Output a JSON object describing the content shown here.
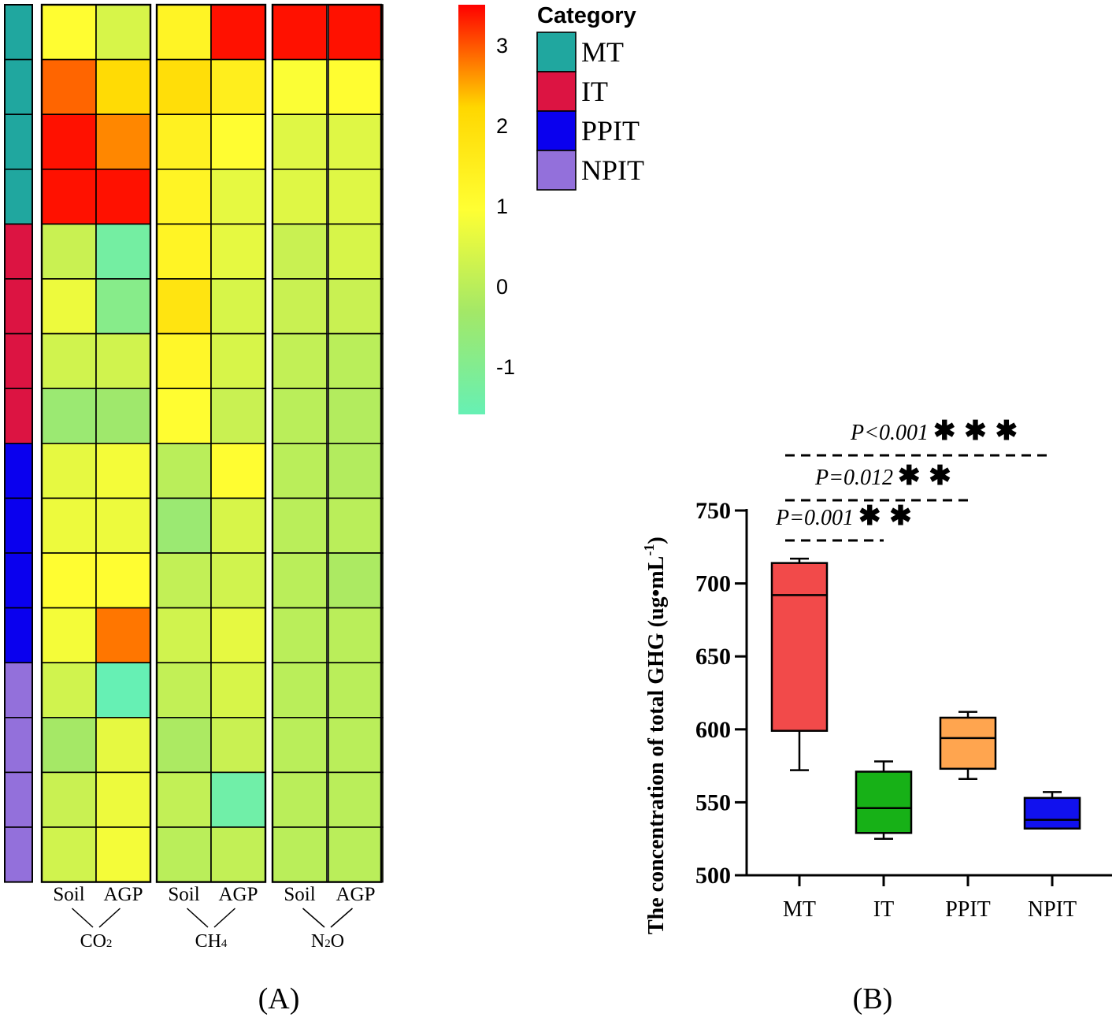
{
  "panel_a": {
    "label": "(A)",
    "legend_title": "Category",
    "categories": [
      {
        "name": "MT",
        "color": "#20A79F"
      },
      {
        "name": "IT",
        "color": "#DC1442"
      },
      {
        "name": "PPIT",
        "color": "#0A00EE"
      },
      {
        "name": "NPIT",
        "color": "#9370DB"
      }
    ],
    "colorbar": {
      "ticks": [
        "3",
        "2",
        "1",
        "0",
        "-1"
      ],
      "tick_values": [
        3,
        2,
        1,
        0,
        -1
      ],
      "min": -1.6,
      "max": 3.5,
      "colors": [
        "#FF0000",
        "#FFD700",
        "#FFFF33",
        "#A3E867",
        "#66F0B4"
      ]
    },
    "gases": [
      {
        "name": "CO",
        "subscript": "2",
        "columns": [
          "Soil",
          "AGP"
        ]
      },
      {
        "name": "CH",
        "subscript": "4",
        "columns": [
          "Soil",
          "AGP"
        ]
      },
      {
        "name": "N",
        "subscript": "2",
        "suffix": "O",
        "columns": [
          "Soil",
          "AGP"
        ]
      }
    ]
  },
  "chart_data": [
    {
      "type": "heatmap",
      "title": "",
      "columns": [
        "CO2 Soil",
        "CO2 AGP",
        "CH4 Soil",
        "CH4 AGP",
        "N2O Soil",
        "N2O AGP"
      ],
      "row_groups": [
        "MT",
        "MT",
        "MT",
        "MT",
        "IT",
        "IT",
        "IT",
        "IT",
        "PPIT",
        "PPIT",
        "PPIT",
        "PPIT",
        "NPIT",
        "NPIT",
        "NPIT",
        "NPIT"
      ],
      "scale": {
        "min": -1.6,
        "max": 3.5
      },
      "values": [
        [
          1.0,
          0.4,
          1.3,
          3.4,
          3.4,
          3.4
        ],
        [
          2.9,
          2.1,
          2.0,
          1.5,
          0.9,
          1.0
        ],
        [
          3.4,
          2.7,
          1.4,
          1.0,
          0.5,
          0.5
        ],
        [
          3.4,
          3.4,
          1.3,
          0.6,
          0.5,
          0.5
        ],
        [
          0.2,
          -1.3,
          1.3,
          0.6,
          0.2,
          0.4
        ],
        [
          0.7,
          -0.9,
          1.8,
          0.4,
          0.2,
          0.2
        ],
        [
          0.3,
          0.3,
          1.2,
          0.4,
          0.1,
          0.0
        ],
        [
          -0.5,
          -0.4,
          1.0,
          0.2,
          0.0,
          -0.1
        ],
        [
          0.6,
          0.8,
          0.0,
          1.0,
          0.0,
          -0.1
        ],
        [
          0.7,
          0.7,
          -0.5,
          0.4,
          0.0,
          0.0
        ],
        [
          1.0,
          1.0,
          0.1,
          0.3,
          0.0,
          -0.2
        ],
        [
          0.8,
          2.8,
          0.3,
          0.6,
          0.0,
          0.0
        ],
        [
          0.3,
          -1.6,
          0.1,
          0.4,
          0.0,
          0.0
        ],
        [
          -0.3,
          0.6,
          -0.2,
          0.2,
          0.0,
          0.0
        ],
        [
          0.2,
          0.7,
          0.1,
          -1.4,
          0.0,
          0.0
        ],
        [
          0.3,
          0.8,
          0.0,
          0.1,
          0.0,
          0.0
        ]
      ]
    },
    {
      "type": "box",
      "title": "",
      "panel_label": "(B)",
      "xlabel": "",
      "ylabel": "The concentration of total GHG (ug•mL",
      "ylabel_sup": "-1",
      "ylabel_end": ")",
      "ylim": [
        500,
        750
      ],
      "yticks": [
        500,
        550,
        600,
        650,
        700,
        750
      ],
      "categories": [
        "MT",
        "IT",
        "PPIT",
        "NPIT"
      ],
      "colors": [
        "#F24A4A",
        "#17B117",
        "#FFA54F",
        "#1111EE"
      ],
      "boxes": [
        {
          "min": 572,
          "q1": 599,
          "median": 692,
          "q3": 714,
          "max": 717
        },
        {
          "min": 525,
          "q1": 529,
          "median": 546,
          "q3": 571,
          "max": 578
        },
        {
          "min": 566,
          "q1": 573,
          "median": 594,
          "q3": 608,
          "max": 612
        },
        {
          "min": 532,
          "q1": 532,
          "median": 538,
          "q3": 553,
          "max": 557
        }
      ],
      "comparisons": [
        {
          "from": "MT",
          "to": "IT",
          "p_text": "P=0.001",
          "stars": "**"
        },
        {
          "from": "MT",
          "to": "PPIT",
          "p_text": "P=0.012",
          "stars": "**"
        },
        {
          "from": "MT",
          "to": "NPIT",
          "p_text": "P<0.001",
          "stars": "***"
        }
      ]
    }
  ]
}
